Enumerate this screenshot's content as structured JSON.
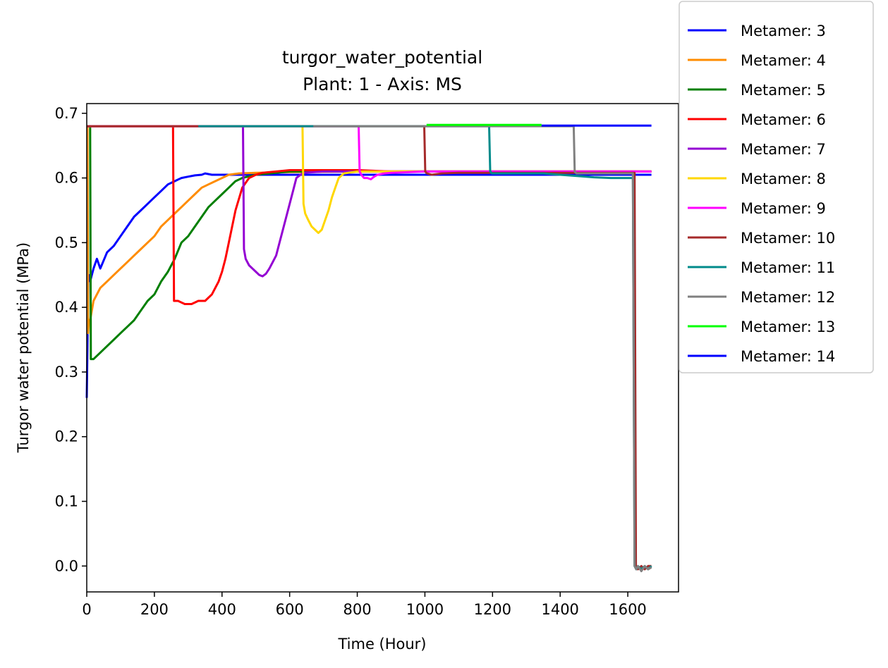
{
  "chart_data": {
    "type": "line",
    "title": "turgor_water_potential",
    "subtitle": "Plant: 1 - Axis: MS",
    "xlabel": "Time (Hour)",
    "ylabel": "Turgor water potential (MPa)",
    "xlim": [
      0,
      1750
    ],
    "ylim": [
      -0.04,
      0.715
    ],
    "xticks": [
      0,
      200,
      400,
      600,
      800,
      1000,
      1200,
      1400,
      1600
    ],
    "yticks": [
      0.0,
      0.1,
      0.2,
      0.3,
      0.4,
      0.5,
      0.6,
      0.7
    ],
    "xtick_labels": [
      "0",
      "200",
      "400",
      "600",
      "800",
      "1000",
      "1200",
      "1400",
      "1600"
    ],
    "ytick_labels": [
      "0.0",
      "0.1",
      "0.2",
      "0.3",
      "0.4",
      "0.5",
      "0.6",
      "0.7"
    ],
    "grid": false,
    "legend_position": "outside-right-top",
    "series": [
      {
        "name": "Metamer: 3",
        "color": "#0000ff",
        "x": [
          0,
          2,
          4,
          6,
          10,
          20,
          30,
          40,
          60,
          80,
          100,
          120,
          140,
          160,
          180,
          200,
          220,
          240,
          260,
          280,
          300,
          320,
          340,
          350,
          370,
          400,
          600,
          800,
          1000,
          1670
        ],
        "y": [
          0.26,
          0.34,
          0.44,
          0.45,
          0.44,
          0.46,
          0.475,
          0.46,
          0.485,
          0.495,
          0.51,
          0.525,
          0.54,
          0.55,
          0.56,
          0.57,
          0.58,
          0.59,
          0.595,
          0.6,
          0.602,
          0.604,
          0.605,
          0.607,
          0.605,
          0.605,
          0.605,
          0.605,
          0.605,
          0.605
        ]
      },
      {
        "name": "Metamer: 4",
        "color": "#ff8c00",
        "x": [
          0,
          2,
          4,
          6,
          10,
          20,
          40,
          60,
          80,
          100,
          120,
          140,
          160,
          180,
          200,
          220,
          240,
          260,
          280,
          300,
          320,
          340,
          360,
          380,
          400,
          420,
          450,
          500,
          600,
          800,
          1000,
          1200,
          1670
        ],
        "y": [
          0.68,
          0.68,
          0.36,
          0.38,
          0.38,
          0.41,
          0.43,
          0.44,
          0.45,
          0.46,
          0.47,
          0.48,
          0.49,
          0.5,
          0.51,
          0.525,
          0.535,
          0.545,
          0.555,
          0.565,
          0.575,
          0.585,
          0.59,
          0.595,
          0.6,
          0.605,
          0.607,
          0.608,
          0.609,
          0.61,
          0.61,
          0.61,
          0.61
        ]
      },
      {
        "name": "Metamer: 5",
        "color": "#007f00",
        "x": [
          0,
          10,
          12,
          15,
          20,
          40,
          60,
          80,
          100,
          120,
          140,
          160,
          180,
          200,
          220,
          240,
          260,
          280,
          300,
          320,
          340,
          360,
          380,
          400,
          420,
          440,
          460,
          500,
          600,
          800,
          1000,
          1670
        ],
        "y": [
          0.68,
          0.68,
          0.32,
          0.32,
          0.32,
          0.33,
          0.34,
          0.35,
          0.36,
          0.37,
          0.38,
          0.395,
          0.41,
          0.42,
          0.44,
          0.455,
          0.475,
          0.5,
          0.51,
          0.525,
          0.54,
          0.555,
          0.565,
          0.575,
          0.585,
          0.595,
          0.6,
          0.605,
          0.61,
          0.61,
          0.61,
          0.61
        ]
      },
      {
        "name": "Metamer: 6",
        "color": "#ff0000",
        "x": [
          0,
          255,
          258,
          262,
          270,
          290,
          310,
          330,
          350,
          370,
          390,
          400,
          410,
          420,
          440,
          460,
          480,
          500,
          520,
          560,
          600,
          700,
          800,
          900,
          1000,
          1200,
          1400,
          1600,
          1670
        ],
        "y": [
          0.68,
          0.68,
          0.41,
          0.41,
          0.41,
          0.405,
          0.405,
          0.41,
          0.41,
          0.42,
          0.44,
          0.455,
          0.475,
          0.5,
          0.55,
          0.585,
          0.6,
          0.605,
          0.608,
          0.61,
          0.612,
          0.612,
          0.612,
          0.61,
          0.61,
          0.61,
          0.61,
          0.61,
          0.61
        ]
      },
      {
        "name": "Metamer: 7",
        "color": "#9400d3",
        "x": [
          0,
          462,
          465,
          470,
          480,
          490,
          500,
          510,
          520,
          530,
          540,
          550,
          560,
          570,
          580,
          590,
          600,
          610,
          620,
          640,
          700,
          800,
          900,
          1000,
          1670
        ],
        "y": [
          0.68,
          0.68,
          0.49,
          0.475,
          0.465,
          0.46,
          0.455,
          0.45,
          0.448,
          0.452,
          0.46,
          0.47,
          0.48,
          0.5,
          0.52,
          0.54,
          0.56,
          0.58,
          0.6,
          0.608,
          0.61,
          0.61,
          0.61,
          0.61,
          0.61
        ]
      },
      {
        "name": "Metamer: 8",
        "color": "#ffd700",
        "x": [
          0,
          638,
          641,
          646,
          655,
          665,
          675,
          685,
          695,
          705,
          715,
          725,
          735,
          745,
          760,
          800,
          900,
          1000,
          1670
        ],
        "y": [
          0.68,
          0.68,
          0.56,
          0.545,
          0.535,
          0.525,
          0.52,
          0.515,
          0.52,
          0.535,
          0.55,
          0.57,
          0.585,
          0.6,
          0.607,
          0.61,
          0.61,
          0.61,
          0.61
        ]
      },
      {
        "name": "Metamer: 9",
        "color": "#ff00ff",
        "x": [
          0,
          804,
          807,
          812,
          820,
          830,
          840,
          850,
          860,
          880,
          900,
          1000,
          1670
        ],
        "y": [
          0.68,
          0.68,
          0.61,
          0.605,
          0.6,
          0.6,
          0.598,
          0.602,
          0.605,
          0.607,
          0.608,
          0.61,
          0.61
        ]
      },
      {
        "name": "Metamer: 10",
        "color": "#a52a2a",
        "x": [
          0,
          998,
          1001,
          1006,
          1020,
          1050,
          1100,
          1200,
          1400,
          1600,
          1620,
          1624,
          1630,
          1640,
          1650,
          1660,
          1670
        ],
        "y": [
          0.68,
          0.68,
          0.61,
          0.607,
          0.605,
          0.607,
          0.608,
          0.608,
          0.608,
          0.608,
          0.608,
          0.0,
          -0.005,
          0.0,
          -0.005,
          0.0,
          0.0
        ]
      },
      {
        "name": "Metamer: 11",
        "color": "#008b8b",
        "x": [
          330,
          1190,
          1193,
          1198,
          1220,
          1260,
          1300,
          1350,
          1400,
          1450,
          1500,
          1550,
          1600,
          1615,
          1620,
          1625,
          1630,
          1640,
          1650,
          1660,
          1670
        ],
        "y": [
          0.68,
          0.68,
          0.61,
          0.607,
          0.607,
          0.607,
          0.607,
          0.607,
          0.605,
          0.603,
          0.601,
          0.6,
          0.6,
          0.6,
          0.0,
          -0.005,
          0.0,
          -0.005,
          0.0,
          -0.005,
          0.0
        ]
      },
      {
        "name": "Metamer: 12",
        "color": "#808080",
        "x": [
          670,
          1440,
          1443,
          1448,
          1460,
          1500,
          1550,
          1600,
          1615,
          1620,
          1625,
          1630,
          1640,
          1650,
          1660,
          1670
        ],
        "y": [
          0.68,
          0.68,
          0.61,
          0.607,
          0.607,
          0.607,
          0.607,
          0.607,
          0.607,
          0.0,
          -0.005,
          0.0,
          -0.008,
          0.0,
          -0.005,
          -0.002
        ]
      },
      {
        "name": "Metamer: 13",
        "color": "#00ff00",
        "x": [
          1005,
          1345
        ],
        "y": [
          0.682,
          0.682
        ]
      },
      {
        "name": "Metamer: 14",
        "color": "#0000ff",
        "x": [
          1345,
          1670
        ],
        "y": [
          0.681,
          0.681
        ]
      }
    ]
  }
}
